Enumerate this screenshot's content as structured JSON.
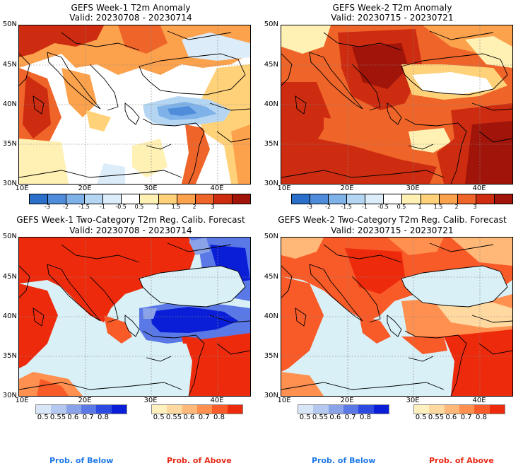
{
  "panels": {
    "tl": {
      "title1": "GEFS Week-1 T2m Anomaly",
      "title2": "Valid: 20230708 - 20230714"
    },
    "tr": {
      "title1": "GEFS Week-2 T2m Anomaly",
      "title2": "Valid: 20230715 - 20230721"
    },
    "bl": {
      "title1": "GEFS Week-1 Two-Category T2m Reg. Calib. Forecast",
      "title2": "Valid: 20230708 - 20230714"
    },
    "br": {
      "title1": "GEFS Week-2 Two-Category T2m Reg. Calib. Forecast",
      "title2": "Valid: 20230715 - 20230721"
    }
  },
  "axes": {
    "lat_labels": [
      "50N",
      "45N",
      "40N",
      "35N",
      "30N"
    ],
    "lon_labels": [
      "10E",
      "20E",
      "30E",
      "40E"
    ]
  },
  "anomaly_colorbar": {
    "ticks": [
      "-3",
      "-2",
      "-1.5",
      "-1",
      "-0.5",
      "0.5",
      "1",
      "1.5",
      "2",
      "3"
    ],
    "colors": [
      "#2a6fc9",
      "#4f8ddb",
      "#7fb2e8",
      "#b5d6f2",
      "#dcecf9",
      "#ffffff",
      "#fff0b4",
      "#ffd27a",
      "#fca14c",
      "#ef6428",
      "#cd2c10",
      "#a0140a"
    ]
  },
  "prob_colorbar": {
    "below_ticks": [
      "0.5",
      "0.55",
      "0.6",
      "0.7",
      "0.8"
    ],
    "above_ticks": [
      "0.5",
      "0.55",
      "0.6",
      "0.7",
      "0.8"
    ],
    "below_colors": [
      "#d8e6f8",
      "#b5c8f0",
      "#8aa3e8",
      "#5a78e6",
      "#2d4ae0",
      "#0a1ed8"
    ],
    "above_colors": [
      "#fff0be",
      "#ffd9a0",
      "#ffb878",
      "#ff9050",
      "#f85a28",
      "#ee2a0c"
    ]
  },
  "legend": {
    "below_label": "Prob. of Below",
    "above_label": "Prob. of Above",
    "below_color": "#1e78e6",
    "above_color": "#e62814"
  },
  "colors": {
    "land_warm_strong": "#c03010",
    "land_warm": "#ef6428",
    "land_mild": "#fca14c",
    "land_light": "#ffd27a",
    "sea": "#d8f0f6",
    "cold": "#2d4ae0"
  }
}
